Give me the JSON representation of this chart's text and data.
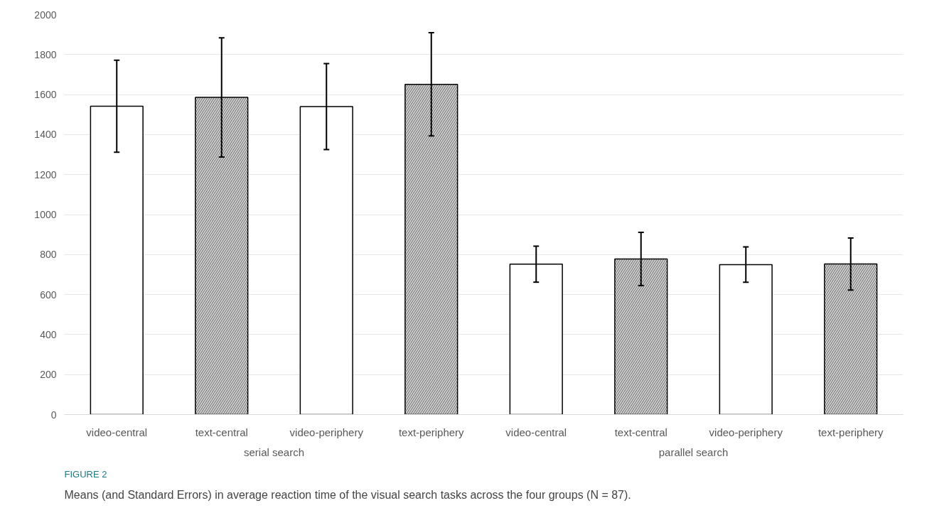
{
  "chart_data": {
    "type": "bar",
    "categories": [
      "video-central",
      "text-central",
      "video-periphery",
      "text-periphery",
      "video-central",
      "text-central",
      "video-periphery",
      "text-periphery"
    ],
    "values": [
      1542,
      1586,
      1540,
      1651,
      752,
      778,
      750,
      753
    ],
    "errors": [
      230,
      298,
      215,
      258,
      90,
      133,
      88,
      130
    ],
    "colors": [
      "#ffffff",
      "#5a5a5a",
      "#ffffff",
      "#5a5a5a",
      "#ffffff",
      "#5a5a5a",
      "#ffffff",
      "#5a5a5a"
    ],
    "ylim": [
      0,
      2000
    ],
    "yticks": [
      0,
      200,
      400,
      600,
      800,
      1000,
      1200,
      1400,
      1600,
      1800,
      2000
    ],
    "grid": "y",
    "annotations": [
      "serial search",
      "parallel search",
      "FIGURE 2",
      "Means (and Standard Errors) in average reaction time of the visual search tasks across the four groups (N = 87)."
    ]
  }
}
